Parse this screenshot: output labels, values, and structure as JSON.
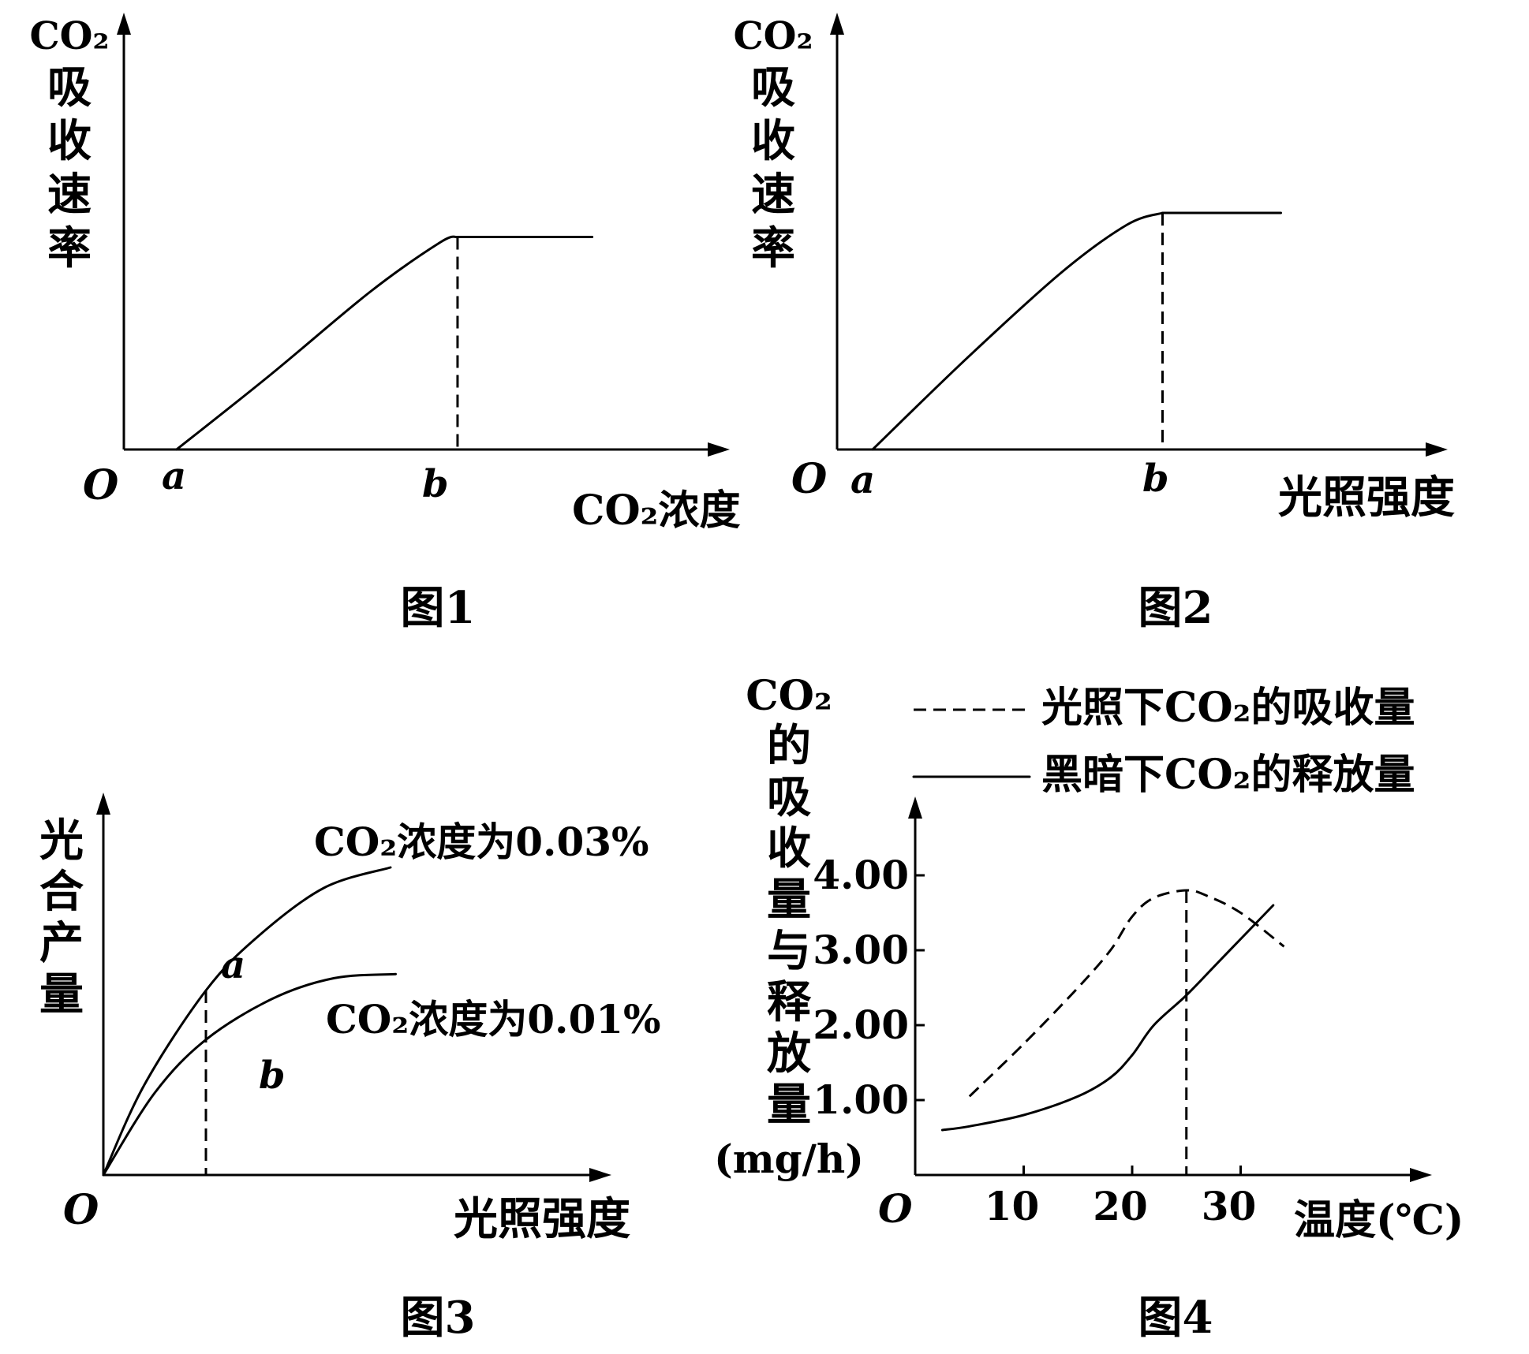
{
  "chart_data": [
    {
      "type": "line",
      "caption": "图1",
      "ylabel": [
        "CO₂",
        "吸",
        "收",
        "速",
        "率"
      ],
      "xlabel": "CO₂浓度",
      "origin_label": "O",
      "point_labels": [
        "a",
        "b"
      ],
      "series": [
        {
          "points": [
            [
              0.09,
              0.0
            ],
            [
              0.25,
              0.27
            ],
            [
              0.42,
              0.57
            ],
            [
              0.54,
              0.75
            ],
            [
              0.57,
              0.77
            ],
            [
              0.8,
              0.77
            ]
          ]
        }
      ],
      "markers": [
        {
          "label": "b",
          "x": 0.57,
          "style": "dashed-vertical"
        }
      ]
    },
    {
      "type": "line",
      "caption": "图2",
      "ylabel": [
        "CO₂",
        "吸",
        "收",
        "速",
        "率"
      ],
      "xlabel": "光照强度",
      "origin_label": "O",
      "point_labels": [
        "a",
        "b"
      ],
      "series": [
        {
          "points": [
            [
              0.06,
              0.0
            ],
            [
              0.22,
              0.31
            ],
            [
              0.38,
              0.6
            ],
            [
              0.49,
              0.76
            ],
            [
              0.55,
              0.8
            ],
            [
              0.75,
              0.8
            ]
          ]
        }
      ],
      "markers": [
        {
          "label": "b",
          "x": 0.55,
          "style": "dashed-vertical"
        }
      ]
    },
    {
      "type": "line",
      "caption": "图3",
      "ylabel": [
        "光",
        "合",
        "产",
        "量"
      ],
      "xlabel": "光照强度",
      "origin_label": "O",
      "series": [
        {
          "name": "CO₂浓度为0.03%",
          "point_label": "a",
          "points": [
            [
              0,
              0
            ],
            [
              0.08,
              0.22
            ],
            [
              0.2,
              0.45
            ],
            [
              0.3,
              0.58
            ],
            [
              0.43,
              0.7
            ],
            [
              0.56,
              0.75
            ]
          ]
        },
        {
          "name": "CO₂浓度为0.01%",
          "point_label": "b",
          "points": [
            [
              0,
              0
            ],
            [
              0.1,
              0.2
            ],
            [
              0.2,
              0.33
            ],
            [
              0.33,
              0.43
            ],
            [
              0.45,
              0.48
            ],
            [
              0.57,
              0.49
            ]
          ]
        }
      ],
      "markers": [
        {
          "x": 0.2,
          "style": "dashed-vertical"
        }
      ]
    },
    {
      "type": "line",
      "caption": "图4",
      "ylabel": [
        "CO₂",
        "的",
        "吸",
        "收",
        "量",
        "与",
        "释",
        "放",
        "量"
      ],
      "yunit": "(mg/h)",
      "xlabel": "温度(℃)",
      "origin_label": "O",
      "xticks": [
        "10",
        "20",
        "30"
      ],
      "yticks": [
        "1.00",
        "2.00",
        "3.00",
        "4.00"
      ],
      "xlim": [
        0,
        46
      ],
      "ylim": [
        0,
        4.6
      ],
      "series": [
        {
          "name": "光照下CO₂的吸收量",
          "style": "dashed",
          "points": [
            [
              5,
              1.05
            ],
            [
              10,
              1.75
            ],
            [
              15,
              2.5
            ],
            [
              18,
              3.0
            ],
            [
              20,
              3.45
            ],
            [
              22,
              3.7
            ],
            [
              25,
              3.8
            ],
            [
              27,
              3.72
            ],
            [
              30,
              3.5
            ],
            [
              34,
              3.05
            ]
          ]
        },
        {
          "name": "黑暗下CO₂的释放量",
          "style": "solid",
          "points": [
            [
              2.5,
              0.6
            ],
            [
              5,
              0.65
            ],
            [
              10,
              0.8
            ],
            [
              15,
              1.05
            ],
            [
              18,
              1.3
            ],
            [
              20,
              1.6
            ],
            [
              22,
              2.0
            ],
            [
              25,
              2.4
            ],
            [
              28,
              2.85
            ],
            [
              31,
              3.3
            ],
            [
              33,
              3.6
            ]
          ]
        }
      ],
      "markers": [
        {
          "x": 25,
          "style": "dashed-vertical"
        }
      ]
    }
  ]
}
